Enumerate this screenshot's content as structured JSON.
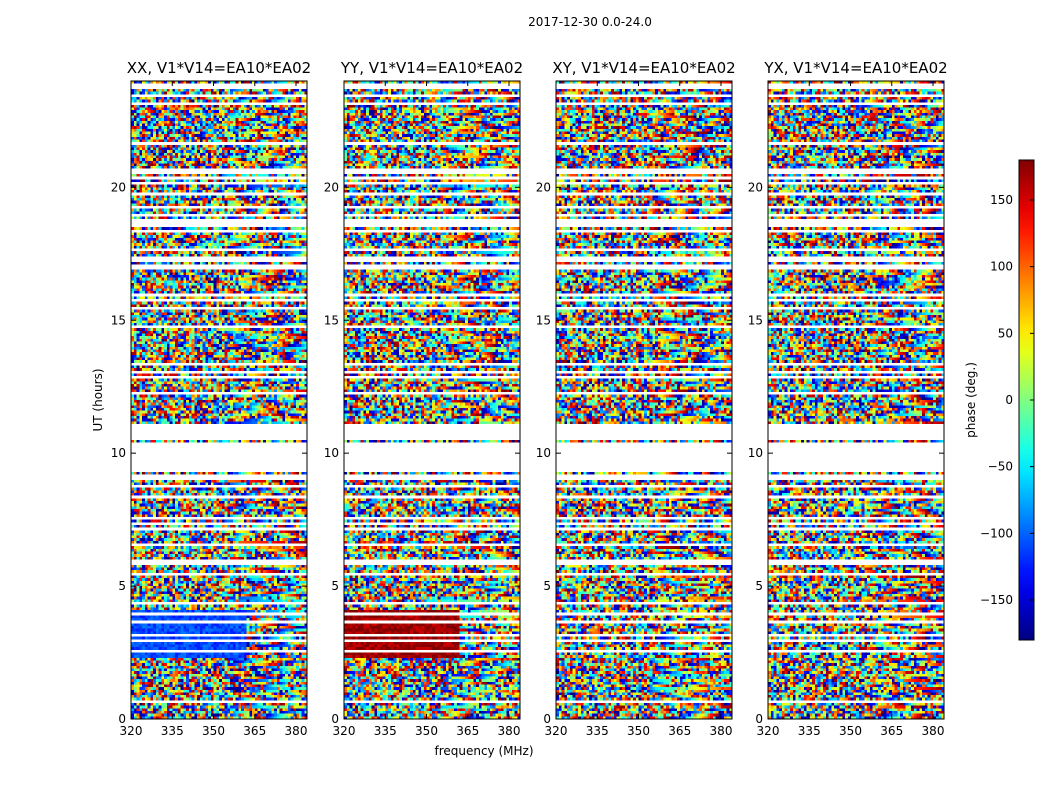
{
  "chart_data": {
    "type": "heatmap",
    "suptitle": "2017-12-30 0.0-24.0",
    "xlabel": "frequency (MHz)",
    "ylabel": "UT (hours)",
    "xlim": [
      320,
      384
    ],
    "ylim": [
      0,
      24
    ],
    "xticks": [
      320,
      335,
      350,
      365,
      380
    ],
    "yticks": [
      0,
      5,
      10,
      15,
      20
    ],
    "panels": [
      {
        "title": "XX, V1*V14=EA10*EA02",
        "block_phase": -110
      },
      {
        "title": "YY, V1*V14=EA10*EA02",
        "block_phase": 170
      },
      {
        "title": "XY, V1*V14=EA10*EA02",
        "block_phase": null
      },
      {
        "title": "YX, V1*V14=EA10*EA02",
        "block_phase": null
      }
    ],
    "colorbar": {
      "label": "phase (deg.)",
      "colormap": "jet",
      "range": [
        -180,
        180
      ],
      "ticks": [
        150,
        100,
        50,
        0,
        -50,
        -100,
        -150
      ],
      "tick_labels": [
        "150",
        "100",
        "50",
        "0",
        "−50",
        "−100",
        "−150"
      ]
    },
    "flagged_ut_ranges": [
      [
        9.0,
        11.2
      ]
    ],
    "strong_phase_block_ut": [
      2.3,
      4.1
    ],
    "strong_phase_block_freq_max": 362
  }
}
